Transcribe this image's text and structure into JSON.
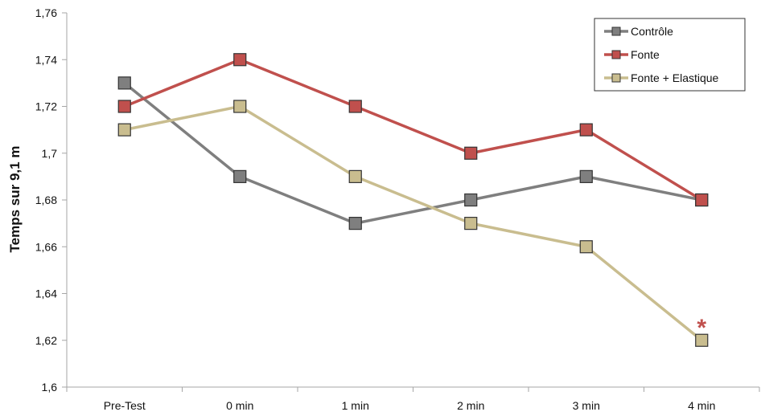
{
  "chart_data": {
    "type": "line",
    "title": "",
    "xlabel": "",
    "ylabel": "Temps sur 9,1 m",
    "categories": [
      "Pre-Test",
      "0 min",
      "1 min",
      "2 min",
      "3 min",
      "4 min"
    ],
    "ylim": [
      1.6,
      1.76
    ],
    "yticks": [
      "1,6",
      "1,62",
      "1,64",
      "1,66",
      "1,68",
      "1,7",
      "1,72",
      "1,74",
      "1,76"
    ],
    "grid": false,
    "legend_position": "top-right",
    "series": [
      {
        "name": "Contrôle",
        "color": "#7f7f7f",
        "values": [
          1.73,
          1.69,
          1.67,
          1.68,
          1.69,
          1.68
        ]
      },
      {
        "name": "Fonte",
        "color": "#c0504d",
        "values": [
          1.72,
          1.74,
          1.72,
          1.7,
          1.71,
          1.68
        ]
      },
      {
        "name": "Fonte + Elastique",
        "color": "#c9bd8f",
        "values": [
          1.71,
          1.72,
          1.69,
          1.67,
          1.66,
          1.62
        ]
      }
    ],
    "annotations": [
      {
        "text": "*",
        "category": "4 min",
        "series": "Fonte + Elastique",
        "color": "#c0504d"
      }
    ]
  }
}
